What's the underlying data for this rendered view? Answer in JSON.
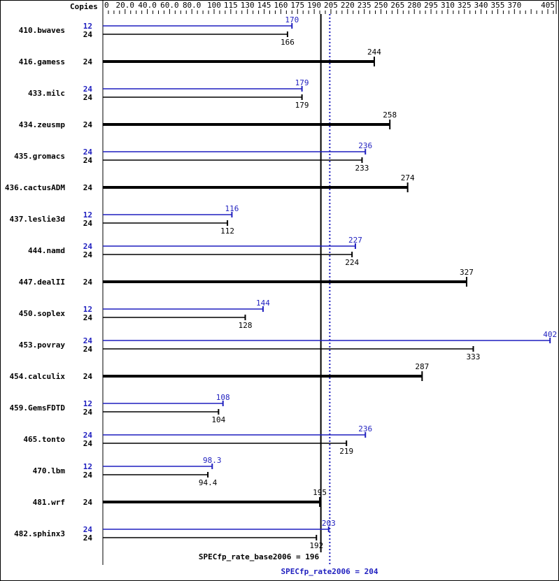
{
  "chart_data": {
    "type": "bar",
    "orientation": "horizontal",
    "axis_label": "Copies",
    "ticks": [
      "0",
      "20.0",
      "40.0",
      "60.0",
      "80.0",
      "100",
      "115",
      "130",
      "145",
      "160",
      "175",
      "190",
      "205",
      "220",
      "235",
      "250",
      "265",
      "280",
      "295",
      "310",
      "325",
      "340",
      "355",
      "370",
      "405"
    ],
    "xlim": [
      0,
      405
    ],
    "colors": {
      "base": "#000000",
      "peak": "#1f1fbf"
    },
    "benchmarks": [
      {
        "name": "410.bwaves",
        "peak_copies": "12",
        "peak": "170",
        "base_copies": "24",
        "base": "166"
      },
      {
        "name": "416.gamess",
        "base_copies": "24",
        "base": "244"
      },
      {
        "name": "433.milc",
        "peak_copies": "24",
        "peak": "179",
        "base_copies": "24",
        "base": "179"
      },
      {
        "name": "434.zeusmp",
        "base_copies": "24",
        "base": "258"
      },
      {
        "name": "435.gromacs",
        "peak_copies": "24",
        "peak": "236",
        "base_copies": "24",
        "base": "233"
      },
      {
        "name": "436.cactusADM",
        "base_copies": "24",
        "base": "274"
      },
      {
        "name": "437.leslie3d",
        "peak_copies": "12",
        "peak": "116",
        "base_copies": "24",
        "base": "112"
      },
      {
        "name": "444.namd",
        "peak_copies": "24",
        "peak": "227",
        "base_copies": "24",
        "base": "224"
      },
      {
        "name": "447.dealII",
        "base_copies": "24",
        "base": "327"
      },
      {
        "name": "450.soplex",
        "peak_copies": "12",
        "peak": "144",
        "base_copies": "24",
        "base": "128"
      },
      {
        "name": "453.povray",
        "peak_copies": "24",
        "peak": "402",
        "base_copies": "24",
        "base": "333"
      },
      {
        "name": "454.calculix",
        "base_copies": "24",
        "base": "287"
      },
      {
        "name": "459.GemsFDTD",
        "peak_copies": "12",
        "peak": "108",
        "base_copies": "24",
        "base": "104"
      },
      {
        "name": "465.tonto",
        "peak_copies": "24",
        "peak": "236",
        "base_copies": "24",
        "base": "219"
      },
      {
        "name": "470.lbm",
        "peak_copies": "12",
        "peak": "98.3",
        "base_copies": "24",
        "base": "94.4"
      },
      {
        "name": "481.wrf",
        "base_copies": "24",
        "base": "195"
      },
      {
        "name": "482.sphinx3",
        "peak_copies": "24",
        "peak": "203",
        "base_copies": "24",
        "base": "192"
      }
    ],
    "base_summary": {
      "label": "SPECfp_rate_base2006 = 196",
      "value": 196
    },
    "peak_summary": {
      "label": "SPECfp_rate2006 = 204",
      "value": 204
    }
  }
}
